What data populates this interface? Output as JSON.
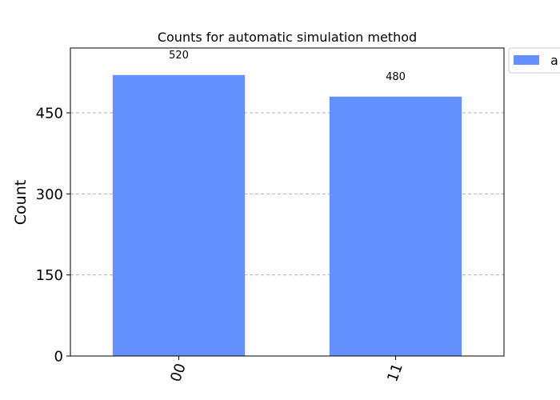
{
  "chart_data": {
    "type": "bar",
    "title": "Counts for automatic simulation method",
    "xlabel": "",
    "ylabel": "Count",
    "categories": [
      "00",
      "11"
    ],
    "series": [
      {
        "name": "a",
        "values": [
          520,
          480
        ],
        "color": "#648fff"
      }
    ],
    "data_labels": [
      "520",
      "480"
    ],
    "ylim": [
      0,
      570
    ],
    "yticks": [
      0,
      150,
      300,
      450
    ],
    "ytick_labels": [
      "0",
      "150",
      "300",
      "450"
    ],
    "grid": true,
    "legend_position": "outside top-right"
  }
}
